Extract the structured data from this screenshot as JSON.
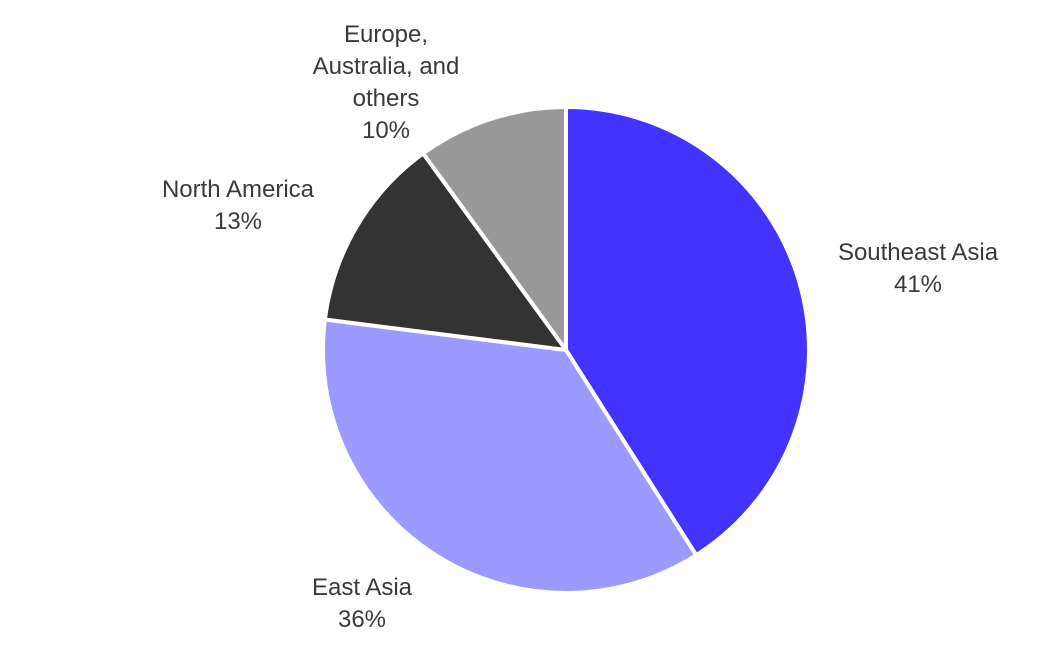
{
  "chart_data": {
    "type": "pie",
    "categories": [
      "Southeast Asia",
      "East Asia",
      "North America",
      "Europe, Australia, and others"
    ],
    "values": [
      41,
      36,
      13,
      10
    ],
    "value_labels": [
      "41%",
      "36%",
      "13%",
      "10%"
    ],
    "colors": [
      "#4433ff",
      "#9c99ff",
      "#333333",
      "#999999"
    ]
  }
}
